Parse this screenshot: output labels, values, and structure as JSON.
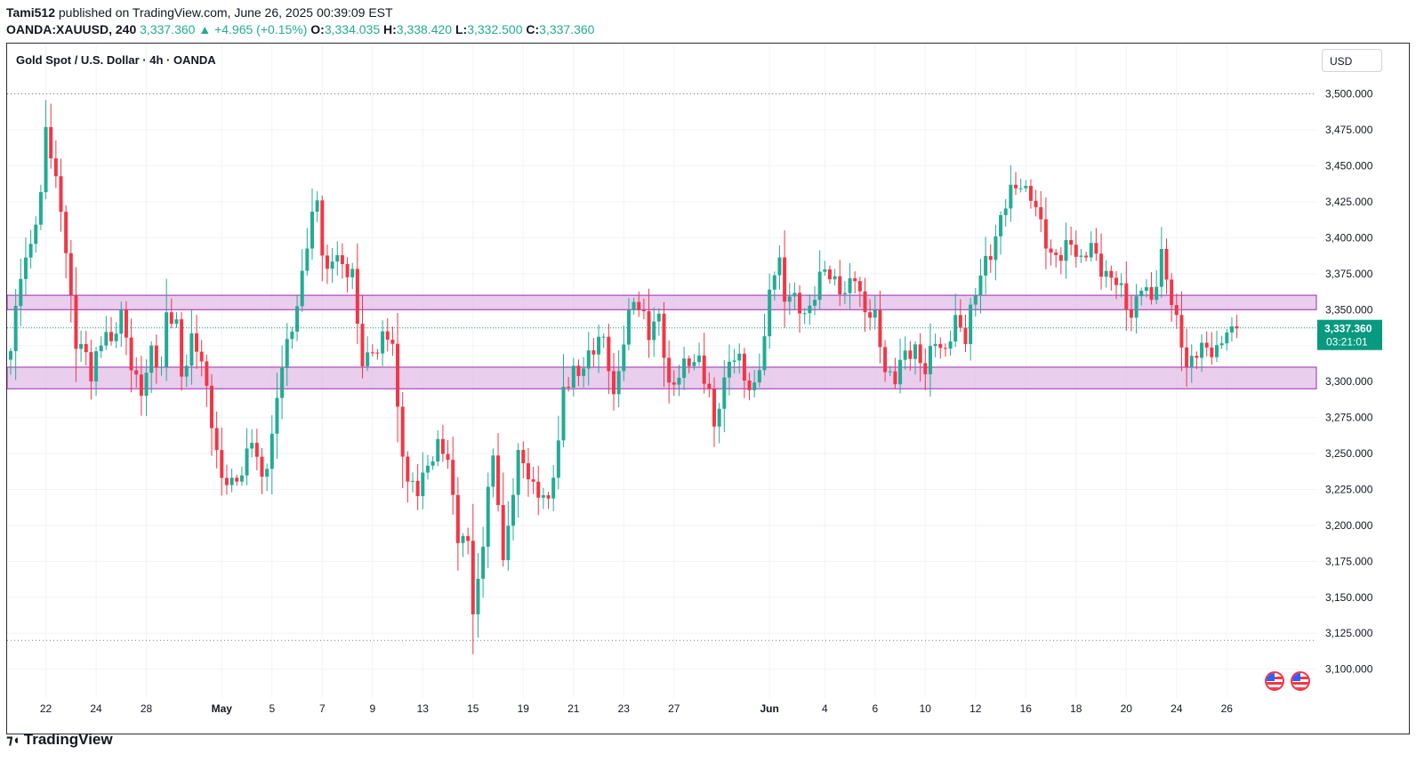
{
  "header": {
    "author": "Tami512",
    "published_text": "published on TradingView.com, June 26, 2025 00:39:09 EST"
  },
  "ohlc": {
    "symbol": "OANDA:XAUUSD, 240",
    "last": "3,337.360",
    "change": "▲ +4.965 (+0.15%)",
    "o_label": "O:",
    "o": "3,334.035",
    "h_label": "H:",
    "h": "3,338.420",
    "l_label": "L:",
    "l": "3,332.500",
    "c_label": "C:",
    "c": "3,337.360"
  },
  "chart_title": "Gold Spot / U.S. Dollar · 4h · OANDA",
  "currency": "USD",
  "brand": "TradingView",
  "colors": {
    "up": "#22ab94",
    "down": "#f23645",
    "zone_fill": "#e1bee7",
    "zone_border": "#9c27b0",
    "price_label": "#089981",
    "grid": "#f0f3fa",
    "text": "#131722"
  },
  "chart_data": {
    "type": "candlestick",
    "ylim": [
      3080,
      3535
    ],
    "y_ticks": [
      3100,
      3125,
      3150,
      3175,
      3200,
      3225,
      3250,
      3275,
      3300,
      3325,
      3350,
      3375,
      3400,
      3425,
      3450,
      3475,
      3500
    ],
    "y_tick_labels": [
      "3,100.000",
      "3,125.000",
      "3,150.000",
      "3,175.000",
      "3,200.000",
      "3,225.000",
      "3,250.000",
      "3,275.000",
      "3,300.000",
      "3,325.000",
      "3,350.000",
      "3,375.000",
      "3,400.000",
      "3,425.000",
      "3,450.000",
      "3,475.000",
      "3,500.000"
    ],
    "x_ticks": [
      {
        "label": "22",
        "bar": 7
      },
      {
        "label": "24",
        "bar": 17
      },
      {
        "label": "28",
        "bar": 27
      },
      {
        "label": "May",
        "bar": 42
      },
      {
        "label": "5",
        "bar": 52
      },
      {
        "label": "7",
        "bar": 62
      },
      {
        "label": "9",
        "bar": 72
      },
      {
        "label": "13",
        "bar": 82
      },
      {
        "label": "15",
        "bar": 92
      },
      {
        "label": "19",
        "bar": 102
      },
      {
        "label": "21",
        "bar": 112
      },
      {
        "label": "23",
        "bar": 122
      },
      {
        "label": "27",
        "bar": 132
      },
      {
        "label": "Jun",
        "bar": 151
      },
      {
        "label": "4",
        "bar": 162
      },
      {
        "label": "6",
        "bar": 172
      },
      {
        "label": "10",
        "bar": 182
      },
      {
        "label": "12",
        "bar": 192
      },
      {
        "label": "16",
        "bar": 202
      },
      {
        "label": "18",
        "bar": 212
      },
      {
        "label": "20",
        "bar": 222
      },
      {
        "label": "24",
        "bar": 232
      },
      {
        "label": "26",
        "bar": 242
      }
    ],
    "zones": [
      {
        "low": 3350,
        "high": 3360
      },
      {
        "low": 3295,
        "high": 3310
      }
    ],
    "dotted_levels": [
      3500,
      3120
    ],
    "last_price": 3337.36,
    "last_price_label": "3,337.360",
    "countdown": "03:21:01",
    "close_waypoints": [
      [
        0,
        3318
      ],
      [
        2,
        3378
      ],
      [
        4,
        3395
      ],
      [
        6,
        3425
      ],
      [
        7,
        3480
      ],
      [
        8,
        3460
      ],
      [
        10,
        3420
      ],
      [
        11,
        3385
      ],
      [
        13,
        3330
      ],
      [
        15,
        3320
      ],
      [
        16,
        3300
      ],
      [
        18,
        3330
      ],
      [
        19,
        3338
      ],
      [
        20,
        3325
      ],
      [
        22,
        3345
      ],
      [
        24,
        3315
      ],
      [
        26,
        3290
      ],
      [
        28,
        3320
      ],
      [
        30,
        3312
      ],
      [
        31,
        3345
      ],
      [
        33,
        3338
      ],
      [
        34,
        3305
      ],
      [
        36,
        3330
      ],
      [
        38,
        3312
      ],
      [
        40,
        3275
      ],
      [
        42,
        3230
      ],
      [
        44,
        3228
      ],
      [
        46,
        3240
      ],
      [
        48,
        3258
      ],
      [
        50,
        3232
      ],
      [
        52,
        3262
      ],
      [
        54,
        3310
      ],
      [
        56,
        3340
      ],
      [
        58,
        3372
      ],
      [
        60,
        3415
      ],
      [
        61,
        3426
      ],
      [
        62,
        3395
      ],
      [
        63,
        3375
      ],
      [
        65,
        3388
      ],
      [
        66,
        3378
      ],
      [
        68,
        3380
      ],
      [
        69,
        3335
      ],
      [
        70,
        3312
      ],
      [
        72,
        3322
      ],
      [
        74,
        3330
      ],
      [
        76,
        3326
      ],
      [
        77,
        3280
      ],
      [
        79,
        3230
      ],
      [
        81,
        3222
      ],
      [
        83,
        3245
      ],
      [
        85,
        3254
      ],
      [
        87,
        3245
      ],
      [
        89,
        3195
      ],
      [
        91,
        3185
      ],
      [
        92,
        3140
      ],
      [
        93,
        3160
      ],
      [
        94,
        3190
      ],
      [
        95,
        3230
      ],
      [
        96,
        3242
      ],
      [
        97,
        3215
      ],
      [
        98,
        3175
      ],
      [
        99,
        3200
      ],
      [
        100,
        3228
      ],
      [
        101,
        3248
      ],
      [
        102,
        3240
      ],
      [
        104,
        3228
      ],
      [
        106,
        3222
      ],
      [
        107,
        3212
      ],
      [
        109,
        3258
      ],
      [
        110,
        3298
      ],
      [
        112,
        3305
      ],
      [
        113,
        3302
      ],
      [
        115,
        3320
      ],
      [
        117,
        3330
      ],
      [
        118,
        3325
      ],
      [
        119,
        3310
      ],
      [
        120,
        3290
      ],
      [
        122,
        3330
      ],
      [
        124,
        3355
      ],
      [
        126,
        3348
      ],
      [
        127,
        3335
      ],
      [
        129,
        3342
      ],
      [
        131,
        3298
      ],
      [
        133,
        3305
      ],
      [
        135,
        3312
      ],
      [
        137,
        3318
      ],
      [
        139,
        3290
      ],
      [
        140,
        3265
      ],
      [
        141,
        3285
      ],
      [
        143,
        3318
      ],
      [
        145,
        3312
      ],
      [
        147,
        3295
      ],
      [
        148,
        3300
      ],
      [
        150,
        3325
      ],
      [
        151,
        3362
      ],
      [
        152,
        3378
      ],
      [
        153,
        3385
      ],
      [
        154,
        3360
      ],
      [
        156,
        3355
      ],
      [
        158,
        3348
      ],
      [
        160,
        3360
      ],
      [
        162,
        3378
      ],
      [
        164,
        3372
      ],
      [
        166,
        3358
      ],
      [
        168,
        3375
      ],
      [
        170,
        3350
      ],
      [
        172,
        3342
      ],
      [
        174,
        3310
      ],
      [
        176,
        3302
      ],
      [
        178,
        3318
      ],
      [
        180,
        3325
      ],
      [
        182,
        3305
      ],
      [
        184,
        3330
      ],
      [
        186,
        3322
      ],
      [
        188,
        3340
      ],
      [
        190,
        3332
      ],
      [
        191,
        3352
      ],
      [
        193,
        3372
      ],
      [
        195,
        3390
      ],
      [
        197,
        3415
      ],
      [
        199,
        3430
      ],
      [
        201,
        3440
      ],
      [
        203,
        3428
      ],
      [
        205,
        3408
      ],
      [
        207,
        3390
      ],
      [
        209,
        3385
      ],
      [
        211,
        3398
      ],
      [
        213,
        3385
      ],
      [
        215,
        3392
      ],
      [
        217,
        3380
      ],
      [
        219,
        3372
      ],
      [
        221,
        3362
      ],
      [
        223,
        3348
      ],
      [
        225,
        3365
      ],
      [
        227,
        3356
      ],
      [
        229,
        3390
      ],
      [
        231,
        3352
      ],
      [
        233,
        3330
      ],
      [
        234,
        3312
      ],
      [
        236,
        3318
      ],
      [
        238,
        3325
      ],
      [
        240,
        3322
      ],
      [
        242,
        3332
      ],
      [
        244,
        3337
      ]
    ]
  }
}
